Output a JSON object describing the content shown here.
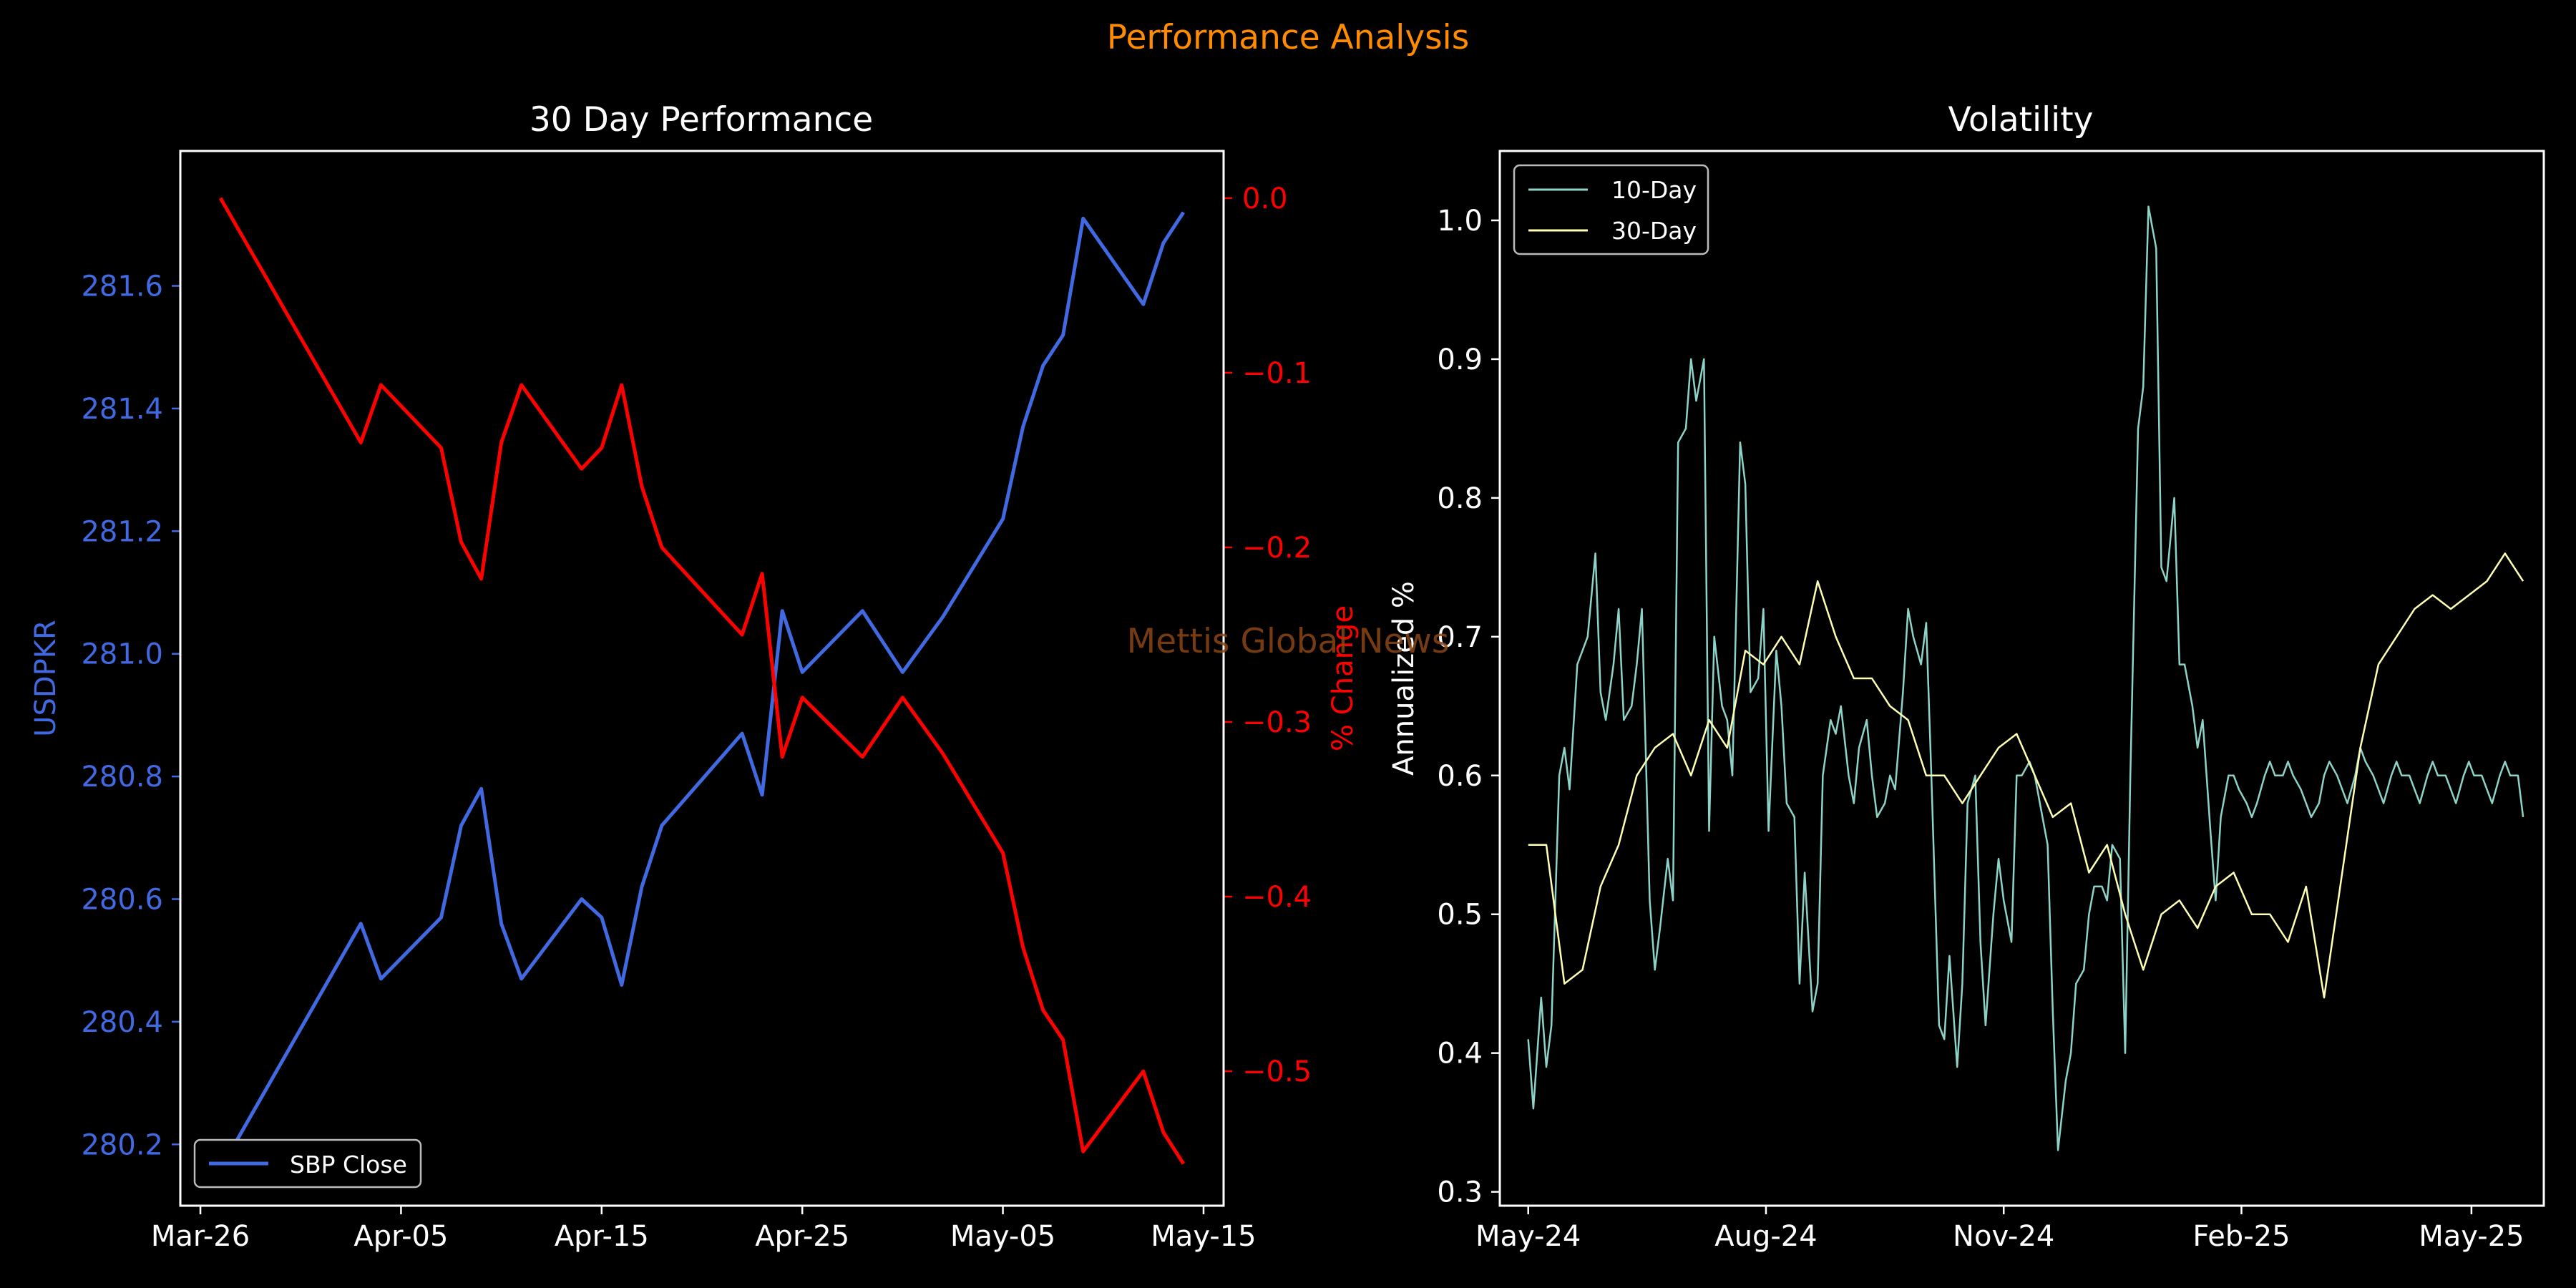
{
  "suptitle": "Performance Analysis",
  "watermark": "Mettis Global News",
  "colors": {
    "background": "#000000",
    "foreground": "#ffffff",
    "suptitle": "#ff8c00",
    "price": "#4169e1",
    "change": "#ff0000",
    "vol10": "#8dd3c7",
    "vol30": "#ffffb3",
    "watermark": "#8b4513"
  },
  "chart_data": [
    {
      "type": "line",
      "title": "30 Day Performance",
      "xlabel": "",
      "ylabel": "USDPKR",
      "ylabel_right": "% Change",
      "x_ticks": [
        "Mar-26",
        "Apr-05",
        "Apr-15",
        "Apr-25",
        "May-05",
        "May-15"
      ],
      "y_ticks": [
        "280.2",
        "280.4",
        "280.6",
        "280.8",
        "281.0",
        "281.2",
        "281.4",
        "281.6"
      ],
      "y_ticks_right": [
        "0.0",
        "−0.1",
        "−0.2",
        "−0.3",
        "−0.4",
        "−0.5"
      ],
      "ylim": [
        280.1,
        281.82
      ],
      "ylim_right": [
        -0.577,
        0.027
      ],
      "xlim": [
        "2025-03-25",
        "2025-05-16"
      ],
      "legend": {
        "position": "lower-left",
        "entries": [
          "SBP Close"
        ]
      },
      "grid": false,
      "series": [
        {
          "name": "SBP Close",
          "axis": "left",
          "x": [
            "2025-03-27",
            "2025-04-03",
            "2025-04-04",
            "2025-04-07",
            "2025-04-08",
            "2025-04-09",
            "2025-04-10",
            "2025-04-11",
            "2025-04-14",
            "2025-04-15",
            "2025-04-16",
            "2025-04-17",
            "2025-04-18",
            "2025-04-22",
            "2025-04-23",
            "2025-04-24",
            "2025-04-25",
            "2025-04-28",
            "2025-04-30",
            "2025-05-02",
            "2025-05-05",
            "2025-05-06",
            "2025-05-07",
            "2025-05-08",
            "2025-05-09",
            "2025-05-12",
            "2025-05-13",
            "2025-05-14"
          ],
          "y": [
            280.16,
            280.56,
            280.47,
            280.57,
            280.72,
            280.78,
            280.56,
            280.47,
            280.6,
            280.57,
            280.46,
            280.62,
            280.72,
            280.87,
            280.77,
            281.07,
            280.97,
            281.07,
            280.97,
            281.06,
            281.22,
            281.37,
            281.47,
            281.52,
            281.71,
            281.57,
            281.67,
            281.72
          ]
        },
        {
          "name": "% Change",
          "axis": "right",
          "x": [
            "2025-03-27",
            "2025-04-03",
            "2025-04-04",
            "2025-04-07",
            "2025-04-08",
            "2025-04-09",
            "2025-04-10",
            "2025-04-11",
            "2025-04-14",
            "2025-04-15",
            "2025-04-16",
            "2025-04-17",
            "2025-04-18",
            "2025-04-22",
            "2025-04-23",
            "2025-04-24",
            "2025-04-25",
            "2025-04-28",
            "2025-04-30",
            "2025-05-02",
            "2025-05-05",
            "2025-05-06",
            "2025-05-07",
            "2025-05-08",
            "2025-05-09",
            "2025-05-12",
            "2025-05-13",
            "2025-05-14"
          ],
          "y": [
            0.0,
            -0.14,
            -0.107,
            -0.143,
            -0.197,
            -0.218,
            -0.14,
            -0.107,
            -0.155,
            -0.143,
            -0.107,
            -0.165,
            -0.2,
            -0.25,
            -0.215,
            -0.32,
            -0.286,
            -0.32,
            -0.286,
            -0.318,
            -0.375,
            -0.429,
            -0.465,
            -0.482,
            -0.546,
            -0.5,
            -0.535,
            -0.553
          ]
        }
      ]
    },
    {
      "type": "line",
      "title": "Volatility",
      "xlabel": "",
      "ylabel": "Annualized %",
      "x_ticks": [
        "May-24",
        "Aug-24",
        "Nov-24",
        "Feb-25",
        "May-25"
      ],
      "x_ticks_dates": [
        "2024-05-01",
        "2024-08-01",
        "2024-11-01",
        "2025-02-01",
        "2025-05-01"
      ],
      "xlim": [
        "2024-04-20",
        "2025-05-29"
      ],
      "y_ticks": [
        "0.3",
        "0.4",
        "0.5",
        "0.6",
        "0.7",
        "0.8",
        "0.9",
        "1.0"
      ],
      "ylim": [
        0.29,
        1.05
      ],
      "legend": {
        "position": "top-left",
        "entries": [
          "10-Day",
          "30-Day"
        ]
      },
      "grid": false,
      "series": [
        {
          "name": "10-Day",
          "x": [
            "2024-05-01",
            "2024-05-03",
            "2024-05-06",
            "2024-05-08",
            "2024-05-10",
            "2024-05-13",
            "2024-05-15",
            "2024-05-17",
            "2024-05-20",
            "2024-05-22",
            "2024-05-24",
            "2024-05-27",
            "2024-05-29",
            "2024-05-31",
            "2024-06-03",
            "2024-06-05",
            "2024-06-07",
            "2024-06-10",
            "2024-06-12",
            "2024-06-14",
            "2024-06-17",
            "2024-06-19",
            "2024-06-21",
            "2024-06-24",
            "2024-06-26",
            "2024-06-28",
            "2024-07-01",
            "2024-07-03",
            "2024-07-05",
            "2024-07-08",
            "2024-07-10",
            "2024-07-12",
            "2024-07-15",
            "2024-07-17",
            "2024-07-19",
            "2024-07-22",
            "2024-07-24",
            "2024-07-26",
            "2024-07-29",
            "2024-07-31",
            "2024-08-02",
            "2024-08-05",
            "2024-08-07",
            "2024-08-09",
            "2024-08-12",
            "2024-08-14",
            "2024-08-16",
            "2024-08-19",
            "2024-08-21",
            "2024-08-23",
            "2024-08-26",
            "2024-08-28",
            "2024-08-30",
            "2024-09-02",
            "2024-09-04",
            "2024-09-06",
            "2024-09-09",
            "2024-09-11",
            "2024-09-13",
            "2024-09-16",
            "2024-09-18",
            "2024-09-20",
            "2024-09-23",
            "2024-09-25",
            "2024-09-27",
            "2024-09-30",
            "2024-10-02",
            "2024-10-04",
            "2024-10-07",
            "2024-10-09",
            "2024-10-11",
            "2024-10-14",
            "2024-10-16",
            "2024-10-18",
            "2024-10-21",
            "2024-10-23",
            "2024-10-25",
            "2024-10-28",
            "2024-10-30",
            "2024-11-01",
            "2024-11-04",
            "2024-11-06",
            "2024-11-08",
            "2024-11-11",
            "2024-11-13",
            "2024-11-15",
            "2024-11-18",
            "2024-11-20",
            "2024-11-22",
            "2024-11-25",
            "2024-11-27",
            "2024-11-29",
            "2024-12-02",
            "2024-12-04",
            "2024-12-06",
            "2024-12-09",
            "2024-12-11",
            "2024-12-13",
            "2024-12-16",
            "2024-12-18",
            "2024-12-20",
            "2024-12-23",
            "2024-12-25",
            "2024-12-27",
            "2024-12-30",
            "2025-01-01",
            "2025-01-03",
            "2025-01-06",
            "2025-01-08",
            "2025-01-10",
            "2025-01-13",
            "2025-01-15",
            "2025-01-17",
            "2025-01-20",
            "2025-01-22",
            "2025-01-24",
            "2025-01-27",
            "2025-01-29",
            "2025-01-31",
            "2025-02-03",
            "2025-02-05",
            "2025-02-07",
            "2025-02-10",
            "2025-02-12",
            "2025-02-14",
            "2025-02-17",
            "2025-02-19",
            "2025-02-21",
            "2025-02-24",
            "2025-02-26",
            "2025-02-28",
            "2025-03-03",
            "2025-03-05",
            "2025-03-07",
            "2025-03-10",
            "2025-03-12",
            "2025-03-14",
            "2025-03-17",
            "2025-03-19",
            "2025-03-21",
            "2025-03-24",
            "2025-03-26",
            "2025-03-28",
            "2025-03-31",
            "2025-04-02",
            "2025-04-04",
            "2025-04-07",
            "2025-04-09",
            "2025-04-11",
            "2025-04-14",
            "2025-04-16",
            "2025-04-18",
            "2025-04-21",
            "2025-04-23",
            "2025-04-25",
            "2025-04-28",
            "2025-04-30",
            "2025-05-02",
            "2025-05-05",
            "2025-05-07",
            "2025-05-09",
            "2025-05-12",
            "2025-05-14",
            "2025-05-16",
            "2025-05-19",
            "2025-05-21"
          ],
          "y": [
            0.41,
            0.36,
            0.44,
            0.39,
            0.42,
            0.6,
            0.62,
            0.59,
            0.68,
            0.69,
            0.7,
            0.76,
            0.66,
            0.64,
            0.68,
            0.72,
            0.64,
            0.65,
            0.68,
            0.72,
            0.51,
            0.46,
            0.49,
            0.54,
            0.51,
            0.84,
            0.85,
            0.9,
            0.87,
            0.9,
            0.56,
            0.7,
            0.65,
            0.64,
            0.6,
            0.84,
            0.81,
            0.66,
            0.67,
            0.72,
            0.56,
            0.69,
            0.65,
            0.58,
            0.57,
            0.45,
            0.53,
            0.43,
            0.45,
            0.6,
            0.64,
            0.63,
            0.65,
            0.6,
            0.58,
            0.62,
            0.64,
            0.6,
            0.57,
            0.58,
            0.6,
            0.59,
            0.66,
            0.72,
            0.7,
            0.68,
            0.71,
            0.6,
            0.42,
            0.41,
            0.47,
            0.39,
            0.45,
            0.58,
            0.6,
            0.48,
            0.42,
            0.5,
            0.54,
            0.51,
            0.48,
            0.6,
            0.6,
            0.61,
            0.6,
            0.58,
            0.55,
            0.43,
            0.33,
            0.38,
            0.4,
            0.45,
            0.46,
            0.5,
            0.52,
            0.52,
            0.51,
            0.55,
            0.54,
            0.4,
            0.6,
            0.85,
            0.88,
            1.01,
            0.98,
            0.75,
            0.74,
            0.8,
            0.68,
            0.68,
            0.65,
            0.62,
            0.64,
            0.56,
            0.51,
            0.57,
            0.6,
            0.6,
            0.59,
            0.58,
            0.57,
            0.58,
            0.6,
            0.61,
            0.6,
            0.6,
            0.61,
            0.6,
            0.59,
            0.58,
            0.57,
            0.58,
            0.6,
            0.61,
            0.6,
            0.59,
            0.58,
            0.6,
            0.62,
            0.61,
            0.6,
            0.59,
            0.58,
            0.6,
            0.61,
            0.6,
            0.6,
            0.59,
            0.58,
            0.6,
            0.61,
            0.6,
            0.6,
            0.59,
            0.58,
            0.6,
            0.61,
            0.6,
            0.6,
            0.59,
            0.58,
            0.6,
            0.61,
            0.6,
            0.6,
            0.57
          ]
        },
        {
          "name": "30-Day",
          "x": [
            "2024-05-01",
            "2024-05-08",
            "2024-05-15",
            "2024-05-22",
            "2024-05-29",
            "2024-06-05",
            "2024-06-12",
            "2024-06-19",
            "2024-06-26",
            "2024-07-03",
            "2024-07-10",
            "2024-07-17",
            "2024-07-24",
            "2024-07-31",
            "2024-08-07",
            "2024-08-14",
            "2024-08-21",
            "2024-08-28",
            "2024-09-04",
            "2024-09-11",
            "2024-09-18",
            "2024-09-25",
            "2024-10-02",
            "2024-10-09",
            "2024-10-16",
            "2024-10-23",
            "2024-10-30",
            "2024-11-06",
            "2024-11-13",
            "2024-11-20",
            "2024-11-27",
            "2024-12-04",
            "2024-12-11",
            "2024-12-18",
            "2024-12-25",
            "2025-01-01",
            "2025-01-08",
            "2025-01-15",
            "2025-01-22",
            "2025-01-29",
            "2025-02-05",
            "2025-02-12",
            "2025-02-19",
            "2025-02-26",
            "2025-03-05",
            "2025-03-12",
            "2025-03-19",
            "2025-03-26",
            "2025-04-02",
            "2025-04-09",
            "2025-04-16",
            "2025-04-23",
            "2025-04-30",
            "2025-05-07",
            "2025-05-14",
            "2025-05-21"
          ],
          "y": [
            0.55,
            0.55,
            0.45,
            0.46,
            0.52,
            0.55,
            0.6,
            0.62,
            0.63,
            0.6,
            0.64,
            0.62,
            0.69,
            0.68,
            0.7,
            0.68,
            0.74,
            0.7,
            0.67,
            0.67,
            0.65,
            0.64,
            0.6,
            0.6,
            0.58,
            0.6,
            0.62,
            0.63,
            0.6,
            0.57,
            0.58,
            0.53,
            0.55,
            0.5,
            0.46,
            0.5,
            0.51,
            0.49,
            0.52,
            0.53,
            0.5,
            0.5,
            0.48,
            0.52,
            0.44,
            0.53,
            0.62,
            0.68,
            0.7,
            0.72,
            0.73,
            0.72,
            0.73,
            0.74,
            0.76,
            0.74
          ]
        }
      ]
    }
  ]
}
